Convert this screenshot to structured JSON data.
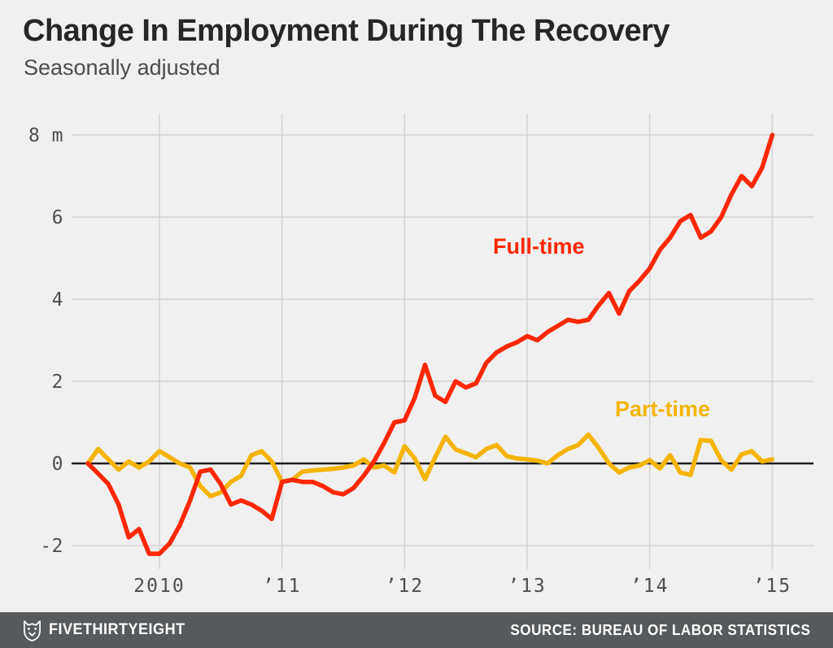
{
  "header": {
    "title": "Change In Employment During The Recovery",
    "subtitle": "Seasonally adjusted"
  },
  "chart_data": {
    "type": "line",
    "x_start": "2009-06",
    "x_end": "2015-01",
    "frequency": "monthly",
    "x_tick_years": [
      2010,
      2011,
      2012,
      2013,
      2014,
      2015
    ],
    "x_tick_labels": [
      "2010",
      "’11",
      "’12",
      "’13",
      "’14",
      "’15"
    ],
    "y_tick_values": [
      8,
      6,
      4,
      2,
      0,
      -2
    ],
    "y_tick_labels": [
      "8 m",
      "6",
      "4",
      "2",
      "0",
      "-2"
    ],
    "ylim": [
      -2.6,
      8.5
    ],
    "grid": true,
    "zero_baseline": true,
    "legend_position": "labels on chart",
    "series": [
      {
        "name": "Full-time",
        "color": "#ff2700",
        "values": [
          0,
          -0.25,
          -0.5,
          -1.0,
          -1.8,
          -1.6,
          -2.2,
          -2.2,
          -1.95,
          -1.5,
          -0.9,
          -0.2,
          -0.15,
          -0.5,
          -1.0,
          -0.9,
          -1.0,
          -1.15,
          -1.35,
          -0.45,
          -0.4,
          -0.45,
          -0.45,
          -0.55,
          -0.7,
          -0.75,
          -0.6,
          -0.3,
          0.05,
          0.5,
          1.0,
          1.05,
          1.6,
          2.4,
          1.65,
          1.5,
          2.0,
          1.85,
          1.95,
          2.45,
          2.7,
          2.85,
          2.95,
          3.1,
          3.0,
          3.2,
          3.35,
          3.5,
          3.45,
          3.5,
          3.85,
          4.15,
          3.65,
          4.2,
          4.45,
          4.75,
          5.2,
          5.5,
          5.9,
          6.05,
          5.5,
          5.65,
          6.0,
          6.55,
          7.0,
          6.75,
          7.2,
          8.0
        ]
      },
      {
        "name": "Part-time",
        "color": "#f5b400",
        "values": [
          0,
          0.35,
          0.1,
          -0.15,
          0.05,
          -0.1,
          0.05,
          0.3,
          0.15,
          0.0,
          -0.1,
          -0.55,
          -0.8,
          -0.7,
          -0.45,
          -0.3,
          0.2,
          0.3,
          0.05,
          -0.45,
          -0.4,
          -0.2,
          -0.17,
          -0.15,
          -0.13,
          -0.1,
          -0.05,
          0.1,
          -0.1,
          -0.05,
          -0.22,
          0.42,
          0.12,
          -0.38,
          0.15,
          0.65,
          0.34,
          0.25,
          0.15,
          0.35,
          0.45,
          0.18,
          0.12,
          0.1,
          0.07,
          0.0,
          0.2,
          0.35,
          0.45,
          0.7,
          0.38,
          0.0,
          -0.22,
          -0.1,
          -0.05,
          0.08,
          -0.12,
          0.2,
          -0.22,
          -0.28,
          0.57,
          0.55,
          0.08,
          -0.15,
          0.22,
          0.3,
          0.05,
          0.1
        ]
      }
    ]
  },
  "footer": {
    "brand": "FIVETHIRTYEIGHT",
    "source": "SOURCE: BUREAU OF LABOR STATISTICS"
  },
  "colors": {
    "background": "#f0f0f0",
    "grid": "#d2d2d2",
    "zero_line": "#1d1d1d",
    "title": "#262626",
    "subtitle": "#4c4c4c",
    "tick": "#4e4e4e",
    "footer_bg": "#575a5c",
    "footer_text": "#ffffff"
  }
}
